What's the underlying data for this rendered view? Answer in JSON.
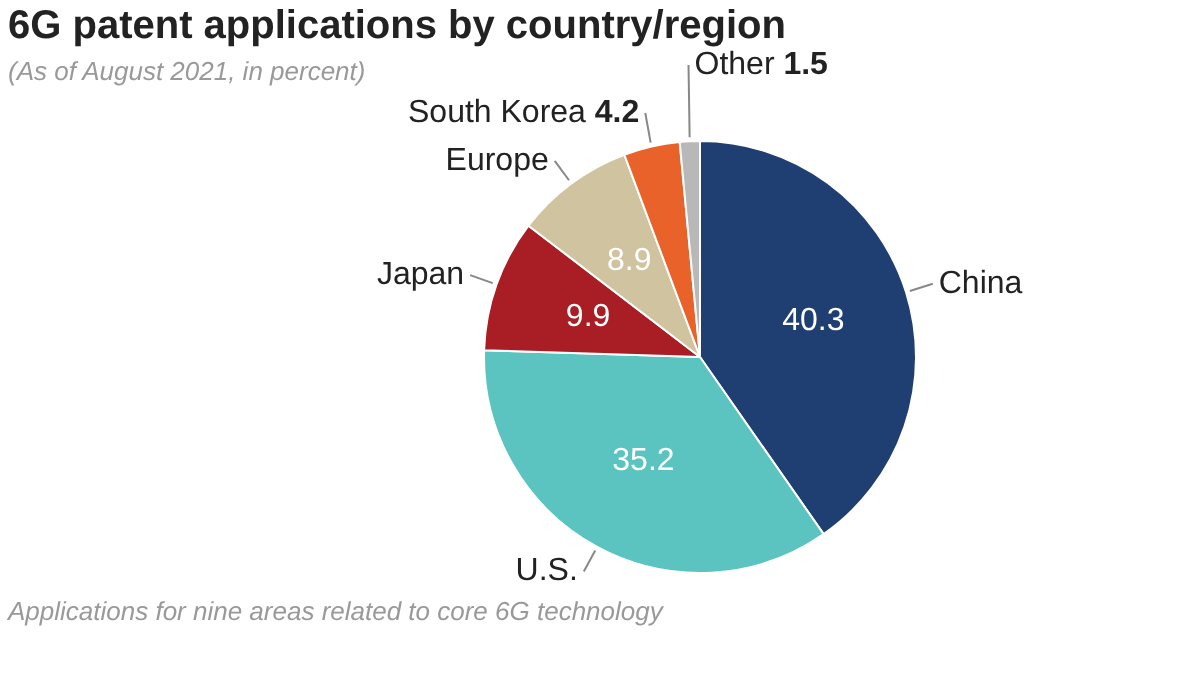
{
  "chart_data": {
    "type": "pie",
    "title": "6G patent applications by country/region",
    "subtitle": "(As of August 2021, in percent)",
    "categories": [
      "China",
      "U.S.",
      "Japan",
      "Europe",
      "South Korea",
      "Other"
    ],
    "values": [
      40.3,
      35.2,
      9.9,
      8.9,
      4.2,
      1.5
    ],
    "colors": [
      "#1f3f73",
      "#5cc4c0",
      "#a81e24",
      "#cfc3a0",
      "#e8622a",
      "#b8b8b8"
    ],
    "data_labels": true,
    "legend": false,
    "annotations": [
      "Applications for nine areas related to core 6G technology"
    ]
  }
}
